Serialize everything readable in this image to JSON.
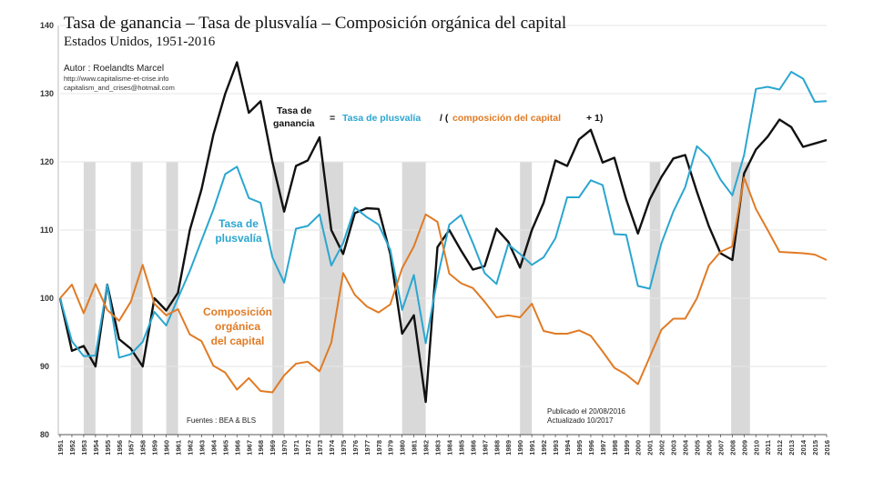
{
  "chart_data": {
    "type": "line",
    "title": "Tasa de ganancia – Tasa de plusvalía – Composición orgánica del capital",
    "subtitle": "Estados Unidos, 1951-2016",
    "author": "Autor : Roelandts Marcel",
    "contact": [
      "http://www.capitalisme-et-crise.info",
      "capitalism_and_crises@hotmail.com"
    ],
    "formula": {
      "ganancia_1": "Tasa de",
      "ganancia_2": "ganancia",
      "eq": "=",
      "plusvalia": "Tasa de plusvalía",
      "slash": "/ (",
      "composicion": "composición del capital",
      "plus_one": "+ 1)"
    },
    "sources": "Fuentes : BEA & BLS",
    "published": [
      "Publicado el 20/08/2016",
      "Actualizado 10/2017"
    ],
    "ylim": [
      80,
      140
    ],
    "yticks": [
      80,
      90,
      100,
      110,
      120,
      130,
      140
    ],
    "x": [
      1951,
      1952,
      1953,
      1954,
      1955,
      1956,
      1957,
      1958,
      1959,
      1960,
      1961,
      1962,
      1963,
      1964,
      1965,
      1966,
      1967,
      1968,
      1969,
      1970,
      1971,
      1972,
      1973,
      1974,
      1975,
      1976,
      1977,
      1978,
      1979,
      1980,
      1981,
      1982,
      1983,
      1984,
      1985,
      1986,
      1987,
      1988,
      1989,
      1990,
      1991,
      1992,
      1993,
      1994,
      1995,
      1996,
      1997,
      1998,
      1999,
      2000,
      2001,
      2002,
      2003,
      2004,
      2005,
      2006,
      2007,
      2008,
      2009,
      2010,
      2011,
      2012,
      2013,
      2014,
      2015,
      2016
    ],
    "recessions": [
      [
        1953,
        1954
      ],
      [
        1957,
        1958
      ],
      [
        1960,
        1961
      ],
      [
        1969,
        1970
      ],
      [
        1973,
        1975
      ],
      [
        1980,
        1982
      ],
      [
        1990,
        1991
      ],
      [
        2001,
        2001.9
      ],
      [
        2007.9,
        2009.5
      ]
    ],
    "series": [
      {
        "name": "Tasa de ganancia",
        "label": [
          "Tasa de",
          "ganancia"
        ],
        "color": "#111111",
        "values": [
          100,
          92.3,
          93,
          90,
          102,
          94,
          92.6,
          90,
          100,
          98.2,
          100.8,
          110,
          116,
          124,
          130,
          134.6,
          127.2,
          128.9,
          120,
          112.7,
          119.4,
          120.2,
          123.6,
          110,
          106.5,
          112.5,
          113.2,
          113.1,
          106.5,
          94.8,
          97.5,
          84.8,
          107.5,
          110,
          107,
          104.2,
          104.7,
          110.2,
          108.3,
          104.5,
          110,
          114,
          120.2,
          119.4,
          123.3,
          124.7,
          119.9,
          120.6,
          114.5,
          109.5,
          114.5,
          117.8,
          120.5,
          121,
          115.6,
          110.6,
          106.6,
          105.6,
          118.3,
          121.8,
          123.7,
          126.2,
          125.1,
          122.2,
          122.7,
          123.2
        ]
      },
      {
        "name": "Tasa de plusvalía",
        "label": [
          "Tasa de",
          "plusvalía"
        ],
        "color": "#2aa6d0",
        "values": [
          100,
          93.7,
          91.5,
          91.6,
          102,
          91.3,
          91.8,
          93.6,
          98,
          96,
          100,
          104,
          108.5,
          113,
          118.2,
          119.3,
          114.7,
          114,
          106,
          102.3,
          110.2,
          110.6,
          112.3,
          104.8,
          108.1,
          113.3,
          111.9,
          110.8,
          107.1,
          98.3,
          103.4,
          93.4,
          102.9,
          110.8,
          112.2,
          108.1,
          103.7,
          102.1,
          107.9,
          106.5,
          104.9,
          106,
          108.8,
          114.8,
          114.8,
          117.3,
          116.6,
          109.4,
          109.3,
          101.8,
          101.4,
          108.1,
          112.7,
          116.3,
          122.3,
          120.7,
          117.4,
          115.1,
          121,
          130.7,
          131,
          130.6,
          133.2,
          132.2,
          128.8,
          128.9
        ]
      },
      {
        "name": "Composición orgánica del capital",
        "label": [
          "Composición",
          "orgánica",
          "del capital"
        ],
        "color": "#e07b25",
        "values": [
          100,
          102,
          97.8,
          102.1,
          98.3,
          96.7,
          99.5,
          104.9,
          99.2,
          97.5,
          98.4,
          94.7,
          93.7,
          90.1,
          89.1,
          86.6,
          88.3,
          86.4,
          86.2,
          88.7,
          90.4,
          90.7,
          89.3,
          93.5,
          103.7,
          100.5,
          98.8,
          97.9,
          99.1,
          104.4,
          107.6,
          112.3,
          111.2,
          103.6,
          102.2,
          101.5,
          99.5,
          97.2,
          97.5,
          97.2,
          99.2,
          95.2,
          94.8,
          94.8,
          95.3,
          94.5,
          92.2,
          89.8,
          88.8,
          87.4,
          91.4,
          95.4,
          97,
          97,
          100,
          104.8,
          106.8,
          107.6,
          117.7,
          113.1,
          110,
          106.8,
          106.7,
          106.6,
          106.4,
          105.6
        ]
      }
    ]
  }
}
